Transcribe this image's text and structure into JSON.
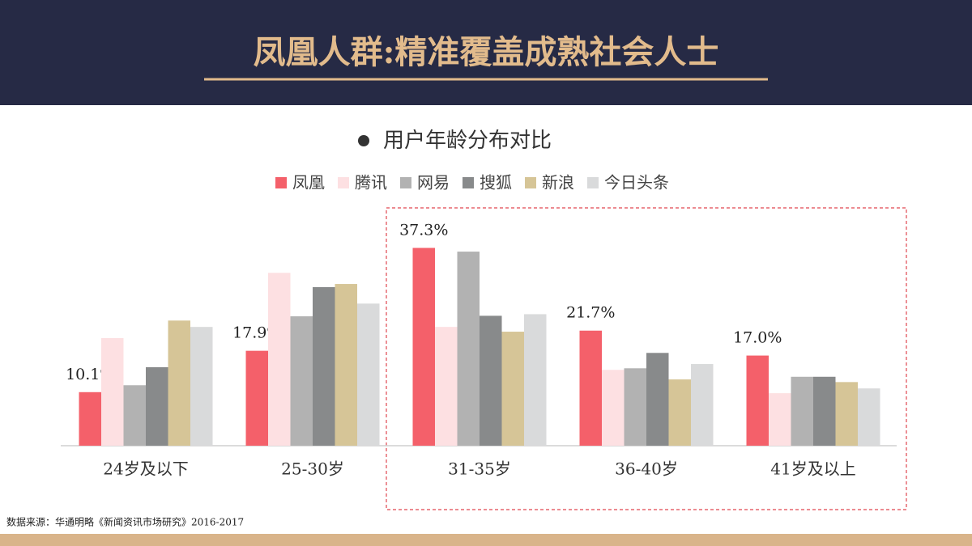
{
  "header": {
    "title": "凤凰人群:精准覆盖成熟社会人士"
  },
  "chart_data": {
    "type": "bar",
    "title": "用户年龄分布对比",
    "categories": [
      "24岁及以下",
      "25-30岁",
      "31-35岁",
      "36-40岁",
      "41岁及以上"
    ],
    "series": [
      {
        "name": "凤凰",
        "color": "#f4606a",
        "values": [
          10.1,
          17.9,
          37.3,
          21.7,
          17.0
        ],
        "value_labels": [
          "10.1%",
          "17.9%",
          "37.3%",
          "21.7%",
          "17.0%"
        ]
      },
      {
        "name": "腾讯",
        "color": "#fde0e2",
        "values": [
          20.3,
          32.6,
          22.4,
          14.3,
          9.9
        ]
      },
      {
        "name": "网易",
        "color": "#b2b2b2",
        "values": [
          11.4,
          24.4,
          36.6,
          14.6,
          13.0
        ]
      },
      {
        "name": "搜狐",
        "color": "#888a8b",
        "values": [
          14.8,
          29.9,
          24.5,
          17.5,
          13.0
        ]
      },
      {
        "name": "新浪",
        "color": "#d6c597",
        "values": [
          23.6,
          30.5,
          21.5,
          12.5,
          12.0
        ]
      },
      {
        "name": "今日头条",
        "color": "#d9dadb",
        "values": [
          22.4,
          26.8,
          24.8,
          15.4,
          10.8
        ]
      }
    ],
    "ylim": [
      0,
      45
    ]
  },
  "footer": {
    "source": "数据来源：华通明略《新闻资讯市场研究》2016-2017"
  }
}
